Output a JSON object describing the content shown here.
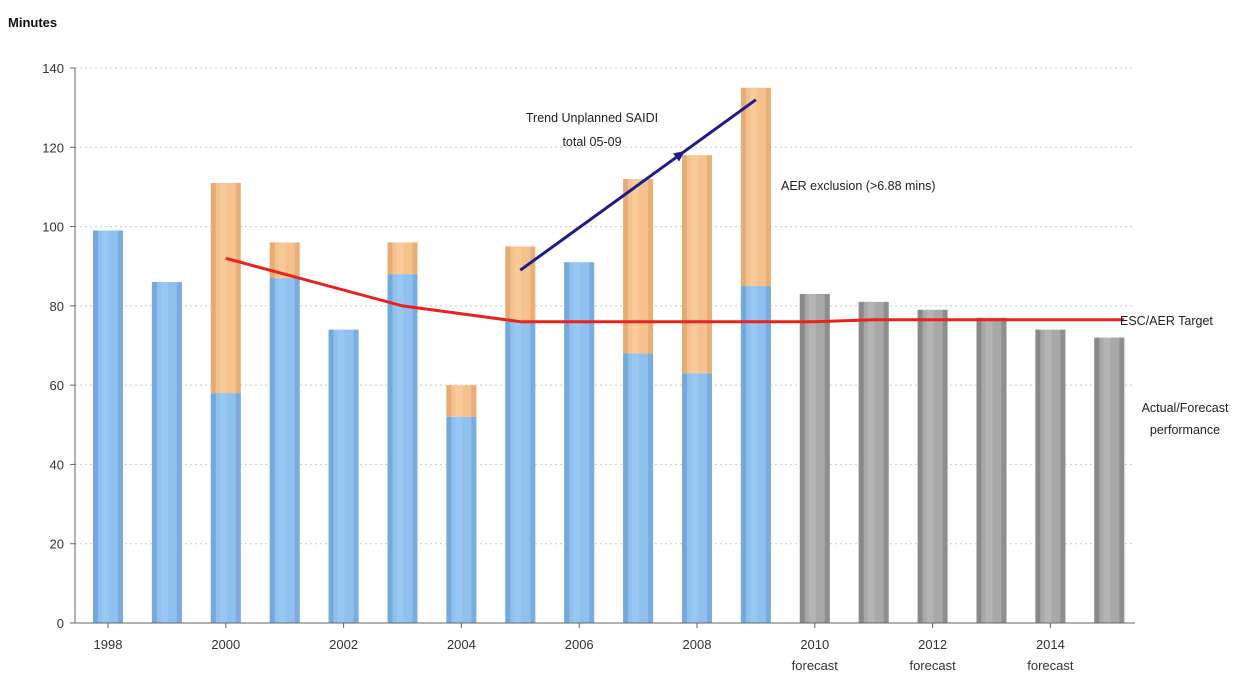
{
  "chart_data": {
    "type": "bar",
    "ylabel": "Minutes",
    "ylim": [
      0,
      140
    ],
    "yticks": [
      0,
      20,
      40,
      60,
      80,
      100,
      120,
      140
    ],
    "grid": "horizontal-dotted",
    "years": [
      1998,
      1999,
      2000,
      2001,
      2002,
      2003,
      2004,
      2005,
      2006,
      2007,
      2008,
      2009,
      2010,
      2011,
      2012,
      2013,
      2014,
      2015
    ],
    "x_tick_labels": [
      {
        "year": 1998,
        "text": "1998",
        "sub": ""
      },
      {
        "year": 2000,
        "text": "2000",
        "sub": ""
      },
      {
        "year": 2002,
        "text": "2002",
        "sub": ""
      },
      {
        "year": 2004,
        "text": "2004",
        "sub": ""
      },
      {
        "year": 2006,
        "text": "2006",
        "sub": ""
      },
      {
        "year": 2008,
        "text": "2008",
        "sub": ""
      },
      {
        "year": 2010,
        "text": "2010",
        "sub": "forecast"
      },
      {
        "year": 2012,
        "text": "2012",
        "sub": "forecast"
      },
      {
        "year": 2014,
        "text": "2014",
        "sub": "forecast"
      }
    ],
    "series": [
      {
        "key": "actual",
        "color": "#8fc0ee",
        "values": [
          99,
          86,
          58,
          87,
          74,
          88,
          52,
          76,
          91,
          68,
          63,
          85,
          null,
          null,
          null,
          null,
          null,
          null
        ]
      },
      {
        "key": "exclusion",
        "color": "#f5c28e",
        "values": [
          0,
          0,
          53,
          9,
          0,
          8,
          8,
          19,
          0,
          44,
          55,
          50,
          null,
          null,
          null,
          null,
          null,
          null
        ]
      },
      {
        "key": "forecast",
        "color": "#a8a8a8",
        "values": [
          null,
          null,
          null,
          null,
          null,
          null,
          null,
          null,
          null,
          null,
          null,
          null,
          83,
          81,
          79,
          77,
          74,
          72
        ]
      }
    ],
    "target_line": {
      "color": "#e8231e",
      "points": [
        [
          2000,
          92
        ],
        [
          2003,
          80
        ],
        [
          2005,
          76
        ],
        [
          2010,
          76
        ],
        [
          2011,
          76.5
        ],
        [
          2015.25,
          76.5
        ]
      ]
    },
    "trend_line": {
      "color": "#1c1c8c",
      "points": [
        [
          2005,
          89
        ],
        [
          2009,
          132
        ]
      ]
    },
    "annotations": {
      "trend": [
        "Trend Unplanned SAIDI",
        "total 05-09"
      ],
      "exclusion": "AER exclusion (>6.88 mins)",
      "target": "ESC/AER Target",
      "performance": [
        "Actual/Forecast",
        "performance"
      ]
    }
  }
}
